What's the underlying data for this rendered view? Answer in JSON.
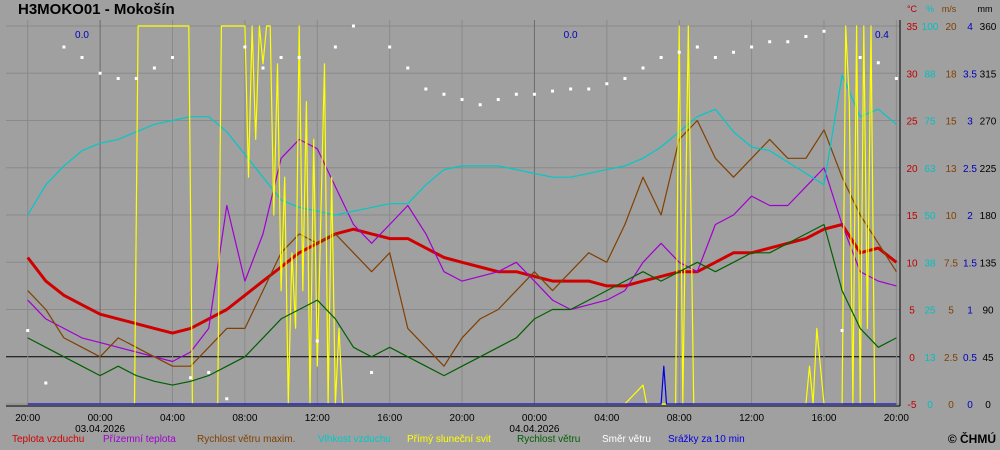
{
  "page": {
    "title": "H3MOKO01 - Mokošín",
    "copyright": "© ČHMÚ"
  },
  "chart_data": {
    "type": "line",
    "grid": true,
    "x_tick_labels": [
      "20:00",
      "00:00",
      "04:00",
      "08:00",
      "12:00",
      "16:00",
      "20:00",
      "00:00",
      "04:00",
      "08:00",
      "12:00",
      "16:00",
      "20:00"
    ],
    "date_labels": [
      "03.04.2026",
      "04.04.2026"
    ],
    "x_hours": [
      0,
      4,
      8,
      12,
      16,
      20,
      24,
      28,
      32,
      36,
      40,
      44,
      48
    ],
    "x_range_hours": [
      -1.2,
      48.2
    ],
    "right_axes": [
      {
        "unit": "°C",
        "color": "#c00000",
        "ticks": [
          "35",
          "30",
          "25",
          "20",
          "15",
          "10",
          "5",
          "0",
          "-5"
        ]
      },
      {
        "unit": "%",
        "color": "#00c0c0",
        "ticks": [
          "100",
          "88",
          "75",
          "63",
          "50",
          "38",
          "25",
          "13",
          "0"
        ]
      },
      {
        "unit": "m/s",
        "color": "#804000",
        "ticks": [
          "20",
          "18",
          "15",
          "13",
          "10",
          "7.5",
          "5",
          "2.5",
          "0"
        ]
      },
      {
        "unit": "",
        "color": "#0000c0",
        "ticks": [
          "4",
          "3.5",
          "3",
          "2.5",
          "2",
          "1.5",
          "1",
          "0.5",
          "0"
        ]
      },
      {
        "unit": "mm",
        "color": "#000000",
        "ticks": [
          "360",
          "315",
          "270",
          "225",
          "180",
          "135",
          "90",
          "45",
          "0"
        ]
      }
    ],
    "y_range_temp": [
      -5,
      35
    ],
    "precip_labels": [
      "0.0",
      "0.0",
      "0.4"
    ],
    "series": [
      {
        "name": "Teplota vzduchu",
        "color": "#d00000",
        "unit": "°C",
        "x": [
          0,
          1,
          2,
          3,
          4,
          5,
          6,
          7,
          8,
          9,
          10,
          11,
          12,
          13,
          14,
          15,
          16,
          17,
          18,
          19,
          20,
          21,
          22,
          23,
          24,
          25,
          26,
          27,
          28,
          29,
          30,
          31,
          32,
          33,
          34,
          35,
          36,
          37,
          38,
          39,
          40,
          41,
          42,
          43,
          44,
          45,
          46,
          47,
          48
        ],
        "values": [
          10.5,
          8,
          6.5,
          5.5,
          4.5,
          4,
          3.5,
          3,
          2.5,
          3,
          4,
          5,
          6.5,
          8,
          9.5,
          11,
          12,
          13,
          13.5,
          13,
          12.5,
          12.5,
          11.5,
          10.5,
          10,
          9.5,
          9,
          9,
          8.5,
          8,
          8,
          8,
          7.5,
          7.5,
          8,
          8.5,
          9,
          9,
          10,
          11,
          11,
          11.5,
          12,
          12.5,
          13.5,
          14,
          11,
          11.5,
          10
        ]
      },
      {
        "name": "Přízemní teplota",
        "color": "#a000d0",
        "unit": "°C",
        "x": [
          0,
          1,
          2,
          3,
          4,
          5,
          6,
          7,
          8,
          9,
          10,
          11,
          12,
          13,
          14,
          15,
          16,
          17,
          18,
          19,
          20,
          21,
          22,
          23,
          24,
          25,
          26,
          27,
          28,
          29,
          30,
          31,
          32,
          33,
          34,
          35,
          36,
          37,
          38,
          39,
          40,
          41,
          42,
          43,
          44,
          45,
          46,
          47,
          48
        ],
        "values": [
          6,
          4,
          3,
          2,
          1.5,
          1,
          0.5,
          0,
          -0.5,
          0.5,
          3,
          16,
          8,
          13,
          21,
          23,
          22,
          18,
          14,
          12,
          14,
          16,
          13,
          9,
          8,
          8.5,
          9,
          10,
          8,
          6,
          5,
          5.5,
          6,
          7,
          10,
          12,
          10,
          9,
          14,
          15,
          17,
          16,
          16,
          18,
          20,
          14,
          9,
          8,
          7.5
        ]
      },
      {
        "name": "Rychlost větru maxim.",
        "color": "#804000",
        "unit": "m/s",
        "x": [
          0,
          1,
          2,
          3,
          4,
          5,
          6,
          7,
          8,
          9,
          10,
          11,
          12,
          13,
          14,
          15,
          16,
          17,
          18,
          19,
          20,
          21,
          22,
          23,
          24,
          25,
          26,
          27,
          28,
          29,
          30,
          31,
          32,
          33,
          34,
          35,
          36,
          37,
          38,
          39,
          40,
          41,
          42,
          43,
          44,
          45,
          46,
          47,
          48
        ],
        "values": [
          6,
          5,
          3.5,
          3,
          2.5,
          3.5,
          3,
          2.5,
          2,
          2,
          3,
          4,
          4,
          6,
          8,
          9,
          8.5,
          9,
          8,
          7,
          8,
          4,
          3,
          2,
          3.5,
          4.5,
          5,
          6,
          7,
          6,
          7,
          8,
          7.5,
          9.5,
          12,
          10,
          14,
          15,
          13,
          12,
          13,
          14,
          13,
          13,
          14.5,
          12,
          10,
          8.5,
          7
        ]
      },
      {
        "name": "Vlhkost vzduchu",
        "color": "#00c8c8",
        "unit": "%",
        "x": [
          0,
          1,
          2,
          3,
          4,
          5,
          6,
          7,
          8,
          9,
          10,
          11,
          12,
          13,
          14,
          15,
          16,
          17,
          18,
          19,
          20,
          21,
          22,
          23,
          24,
          25,
          26,
          27,
          28,
          29,
          30,
          31,
          32,
          33,
          34,
          35,
          36,
          37,
          38,
          39,
          40,
          41,
          42,
          43,
          44,
          45,
          46,
          47,
          48
        ],
        "values": [
          50,
          58,
          63,
          67,
          69,
          70,
          72,
          74,
          75,
          76,
          76,
          72,
          66,
          60,
          54,
          52,
          51,
          50,
          51,
          52,
          53,
          53,
          58,
          62,
          63,
          63,
          63,
          62,
          61,
          60,
          60,
          61,
          62,
          63,
          65,
          68,
          72,
          76,
          78,
          72,
          68,
          67,
          64,
          61,
          58,
          87,
          76,
          78,
          74
        ]
      },
      {
        "name": "Přímý sluneční svit",
        "color": "#ffff00",
        "unit": "",
        "x": [
          0,
          5.9,
          6.1,
          8.9,
          9.1,
          10.5,
          10.7,
          12,
          12.2,
          12.4,
          12.6,
          12.8,
          13,
          13.2,
          13.4,
          13.6,
          13.8,
          14,
          14.2,
          14.4,
          14.6,
          14.8,
          15,
          15.2,
          15.4,
          15.6,
          15.8,
          16,
          16.2,
          16.4,
          16.6,
          16.8,
          17,
          17.2,
          17.4,
          17.6,
          17.8,
          18,
          18.2,
          33,
          34,
          34.2,
          35.8,
          36,
          36.2,
          36.5,
          36.8,
          37,
          43,
          43.2,
          43.4,
          43.6,
          44,
          45,
          45.2,
          45.4,
          45.6,
          45.8,
          46,
          46.2,
          46.4,
          46.6,
          46.8,
          47,
          48
        ],
        "values": [
          0,
          0,
          100,
          100,
          0,
          0,
          100,
          100,
          60,
          100,
          70,
          100,
          90,
          100,
          100,
          50,
          90,
          30,
          60,
          0,
          40,
          20,
          100,
          30,
          80,
          0,
          70,
          10,
          50,
          90,
          0,
          60,
          0,
          20,
          0,
          0,
          0,
          0,
          0,
          0,
          5,
          0,
          0,
          100,
          0,
          100,
          0,
          0,
          0,
          10,
          0,
          20,
          0,
          0,
          100,
          80,
          0,
          100,
          0,
          100,
          20,
          100,
          0,
          0,
          0
        ]
      },
      {
        "name": "Rychlost větru",
        "color": "#006000",
        "unit": "m/s",
        "x": [
          0,
          1,
          2,
          3,
          4,
          5,
          6,
          7,
          8,
          9,
          10,
          11,
          12,
          13,
          14,
          15,
          16,
          17,
          18,
          19,
          20,
          21,
          22,
          23,
          24,
          25,
          26,
          27,
          28,
          29,
          30,
          31,
          32,
          33,
          34,
          35,
          36,
          37,
          38,
          39,
          40,
          41,
          42,
          43,
          44,
          45,
          46,
          47,
          48
        ],
        "values": [
          3.5,
          3,
          2.5,
          2,
          1.5,
          2,
          1.5,
          1.2,
          1,
          1.2,
          1.5,
          2,
          2.5,
          3.5,
          4.5,
          5,
          5.5,
          4.5,
          3,
          2.5,
          3,
          2.5,
          2,
          1.5,
          2,
          2.5,
          3,
          3.5,
          4.5,
          5,
          5,
          5.5,
          6,
          6.5,
          7,
          6.5,
          7,
          7.5,
          7,
          7.5,
          8,
          8,
          8.5,
          9,
          9.5,
          6,
          4,
          3,
          3.5
        ]
      },
      {
        "name": "Směr větru",
        "color": "#ffffff",
        "unit": "°",
        "x": [
          0,
          1,
          2,
          3,
          4,
          5,
          6,
          7,
          8,
          9,
          10,
          11,
          12,
          13,
          14,
          15,
          16,
          17,
          18,
          19,
          20,
          21,
          22,
          23,
          24,
          25,
          26,
          27,
          28,
          29,
          30,
          31,
          32,
          33,
          34,
          35,
          36,
          37,
          38,
          39,
          40,
          41,
          42,
          43,
          44,
          45,
          46,
          47,
          48
        ],
        "values": [
          70,
          20,
          340,
          330,
          315,
          310,
          310,
          320,
          330,
          25,
          30,
          5,
          340,
          320,
          330,
          330,
          60,
          340,
          360,
          30,
          340,
          320,
          300,
          295,
          290,
          285,
          290,
          295,
          295,
          298,
          300,
          300,
          305,
          310,
          320,
          330,
          335,
          340,
          330,
          335,
          340,
          345,
          345,
          350,
          355,
          70,
          330,
          325,
          310
        ]
      },
      {
        "name": "Srážky za 10 min",
        "color": "#0000e0",
        "unit": "mm",
        "x": [
          0,
          35,
          35.15,
          35.3,
          48
        ],
        "values": [
          0,
          0,
          0.4,
          0,
          0
        ]
      }
    ]
  }
}
